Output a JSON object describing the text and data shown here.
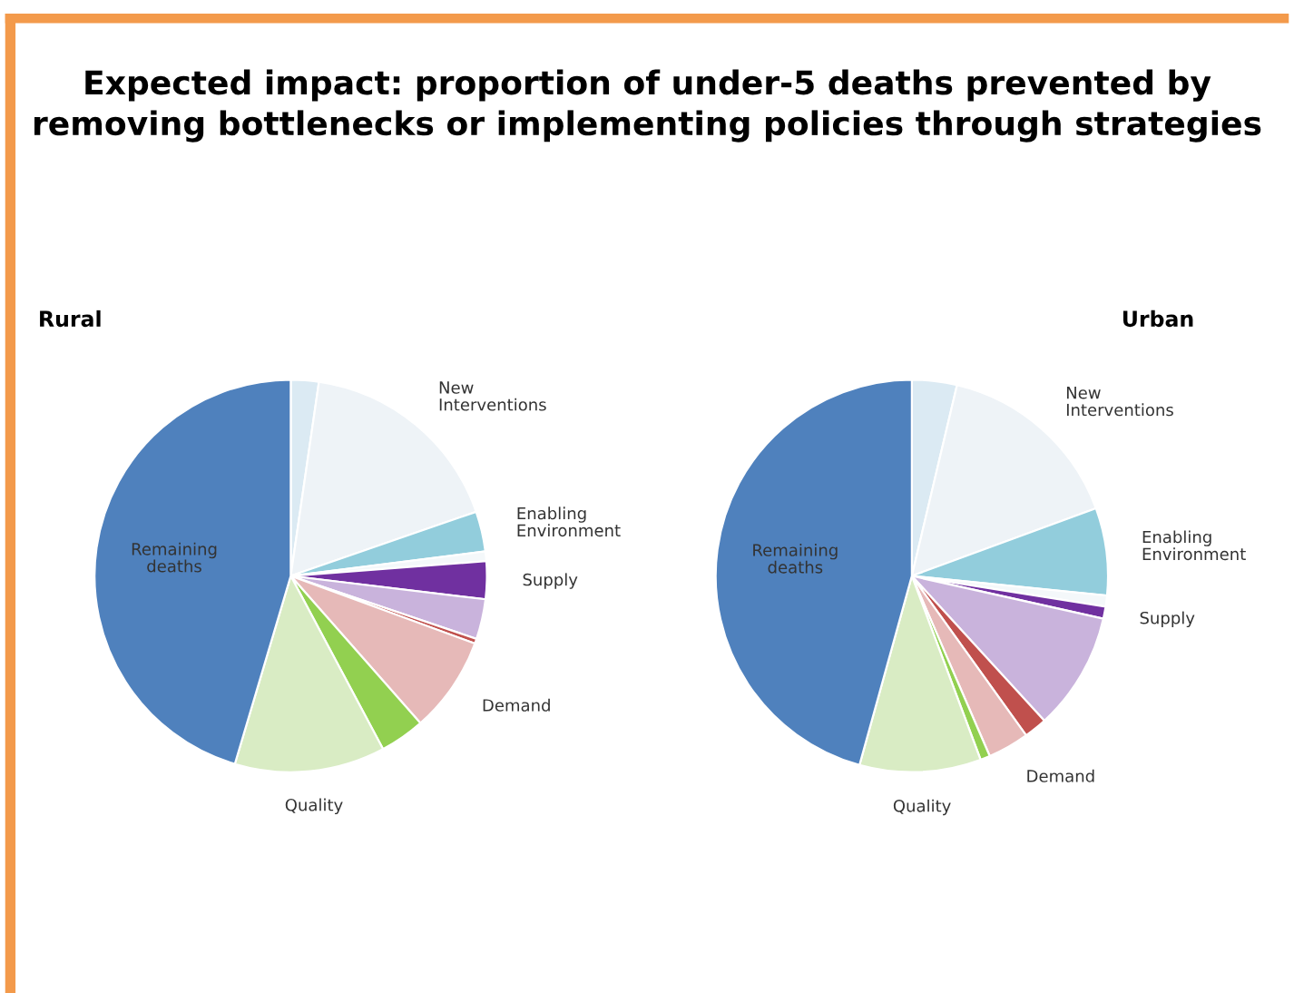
{
  "chart_data": [
    {
      "type": "pie",
      "title": "Expected impact: proportion of under-5 deaths prevented by removing bottlenecks or implementing policies through strategies",
      "subtitle": "Rural",
      "categories": [
        null,
        "New\nInterventions",
        "Enabling\nEnvironment",
        null,
        "Supply",
        null,
        null,
        "Demand",
        null,
        "Quality",
        "Remaining\ndeaths"
      ],
      "values": [
        2.3,
        17.4,
        3.3,
        0.8,
        3.1,
        3.3,
        0.4,
        7.9,
        3.7,
        12.4,
        45.4
      ],
      "colors": [
        "#dbeaf3",
        "#eef3f7",
        "#92cddc",
        "#f4f8fa",
        "#7030a0",
        "#c9b3dc",
        "#c0504d",
        "#e6b9b8",
        "#92d050",
        "#d9ecc4",
        "#4f81bd"
      ]
    },
    {
      "type": "pie",
      "subtitle": "Urban",
      "categories": [
        null,
        "New\nInterventions",
        "Enabling\nEnvironment",
        null,
        "Supply",
        null,
        null,
        "Demand",
        null,
        "Quality",
        "Remaining\ndeaths"
      ],
      "values": [
        3.7,
        15.7,
        7.2,
        0.9,
        1.0,
        9.7,
        1.9,
        3.4,
        0.8,
        10.0,
        45.7
      ],
      "colors": [
        "#dbeaf3",
        "#eef3f7",
        "#92cddc",
        "#f4f8fa",
        "#7030a0",
        "#c9b3dc",
        "#c0504d",
        "#e6b9b8",
        "#92d050",
        "#d9ecc4",
        "#4f81bd"
      ]
    }
  ]
}
